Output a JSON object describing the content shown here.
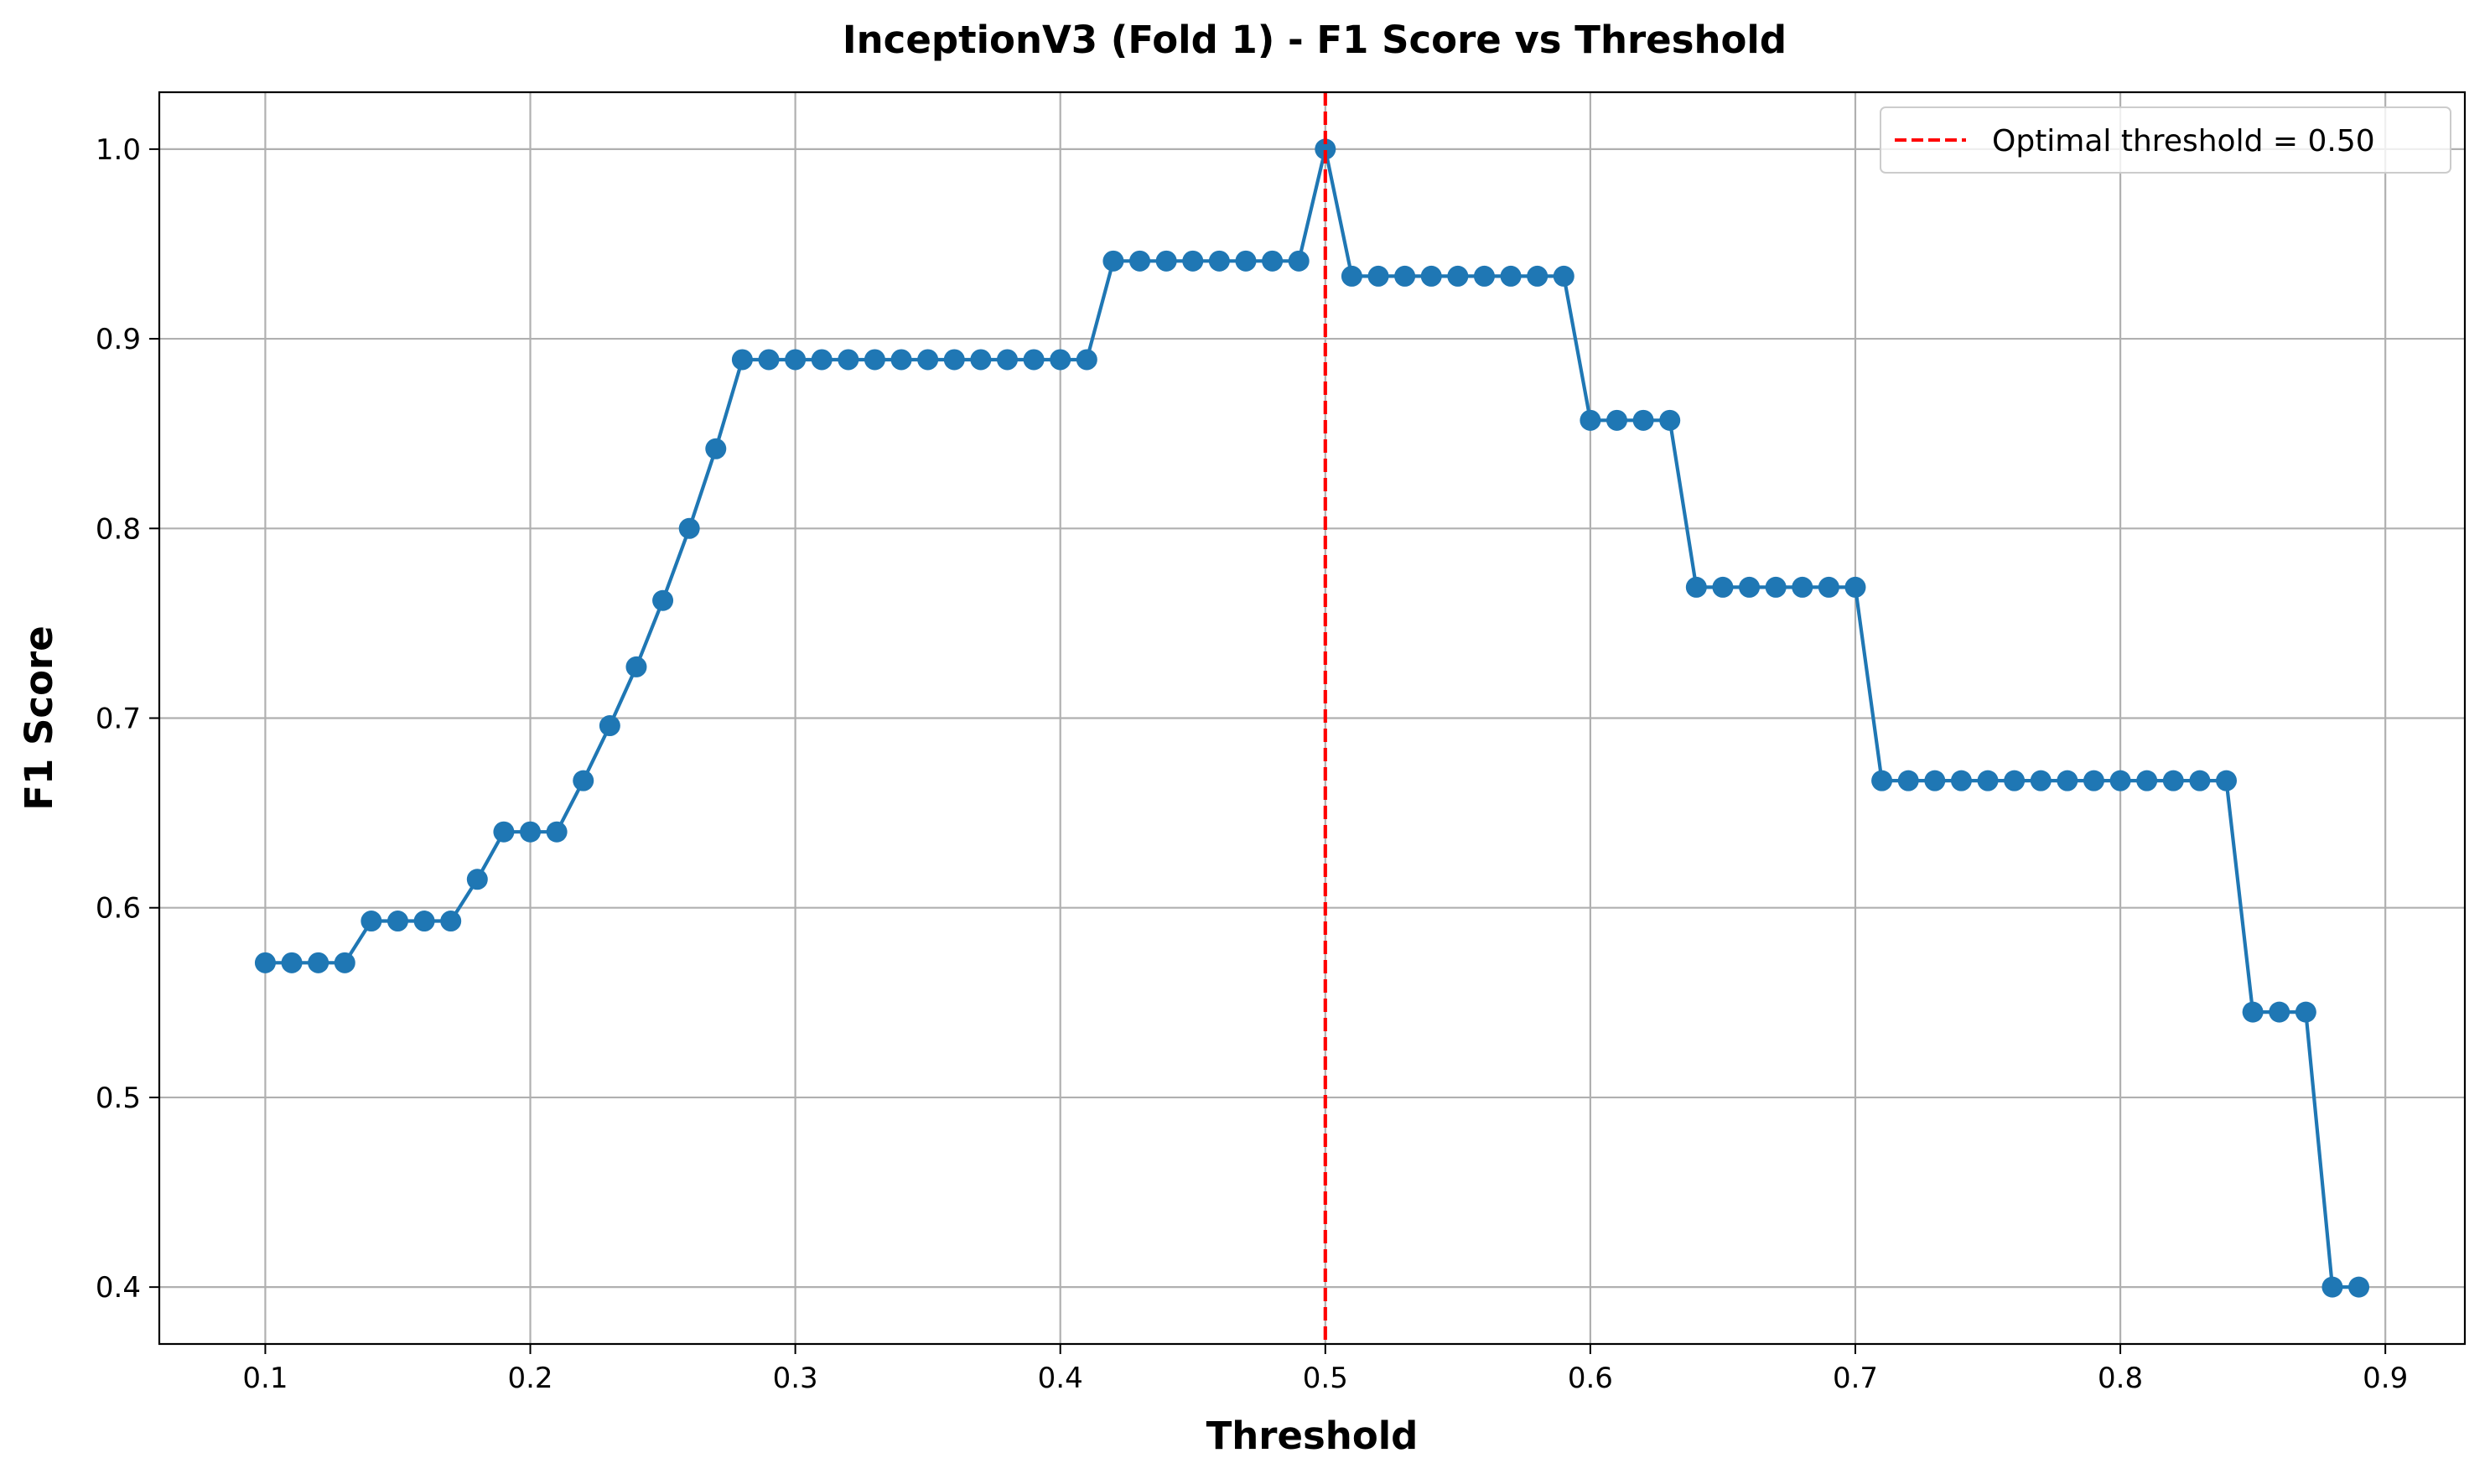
{
  "chart_data": {
    "type": "line",
    "title": "InceptionV3 (Fold 1) - F1 Score vs Threshold",
    "xlabel": "Threshold",
    "ylabel": "F1 Score",
    "xlim": [
      0.06,
      0.93
    ],
    "ylim": [
      0.37,
      1.03
    ],
    "xticks": [
      0.1,
      0.2,
      0.3,
      0.4,
      0.5,
      0.6,
      0.7,
      0.8,
      0.9
    ],
    "xtick_labels": [
      "0.1",
      "0.2",
      "0.3",
      "0.4",
      "0.5",
      "0.6",
      "0.7",
      "0.8",
      "0.9"
    ],
    "yticks": [
      0.4,
      0.5,
      0.6,
      0.7,
      0.8,
      0.9,
      1.0
    ],
    "ytick_labels": [
      "0.4",
      "0.5",
      "0.6",
      "0.7",
      "0.8",
      "0.9",
      "1.0"
    ],
    "grid": true,
    "legend_position": "top-right",
    "series": [
      {
        "color": "#1f77b4",
        "marker": "circle",
        "x": [
          0.1,
          0.11,
          0.12,
          0.13,
          0.14,
          0.15,
          0.16,
          0.17,
          0.18,
          0.19,
          0.2,
          0.21,
          0.22,
          0.23,
          0.24,
          0.25,
          0.26,
          0.27,
          0.28,
          0.29,
          0.3,
          0.31,
          0.32,
          0.33,
          0.34,
          0.35,
          0.36,
          0.37,
          0.38,
          0.39,
          0.4,
          0.41,
          0.42,
          0.43,
          0.44,
          0.45,
          0.46,
          0.47,
          0.48,
          0.49,
          0.5,
          0.51,
          0.52,
          0.53,
          0.54,
          0.55,
          0.56,
          0.57,
          0.58,
          0.59,
          0.6,
          0.61,
          0.62,
          0.63,
          0.64,
          0.65,
          0.66,
          0.67,
          0.68,
          0.69,
          0.7,
          0.71,
          0.72,
          0.73,
          0.74,
          0.75,
          0.76,
          0.77,
          0.78,
          0.79,
          0.8,
          0.81,
          0.82,
          0.83,
          0.84,
          0.85,
          0.86,
          0.87,
          0.88,
          0.89
        ],
        "values": [
          0.571,
          0.571,
          0.571,
          0.571,
          0.593,
          0.593,
          0.593,
          0.593,
          0.615,
          0.64,
          0.64,
          0.64,
          0.667,
          0.696,
          0.727,
          0.762,
          0.8,
          0.842,
          0.889,
          0.889,
          0.889,
          0.889,
          0.889,
          0.889,
          0.889,
          0.889,
          0.889,
          0.889,
          0.889,
          0.889,
          0.889,
          0.889,
          0.941,
          0.941,
          0.941,
          0.941,
          0.941,
          0.941,
          0.941,
          0.941,
          1.0,
          0.933,
          0.933,
          0.933,
          0.933,
          0.933,
          0.933,
          0.933,
          0.933,
          0.933,
          0.857,
          0.857,
          0.857,
          0.857,
          0.769,
          0.769,
          0.769,
          0.769,
          0.769,
          0.769,
          0.769,
          0.667,
          0.667,
          0.667,
          0.667,
          0.667,
          0.667,
          0.667,
          0.667,
          0.667,
          0.667,
          0.667,
          0.667,
          0.667,
          0.667,
          0.545,
          0.545,
          0.545,
          0.4,
          0.4
        ]
      }
    ],
    "vline": {
      "x": 0.5,
      "color": "#ff0000",
      "style": "dashed",
      "legend_label": "Optimal threshold = 0.50"
    }
  }
}
